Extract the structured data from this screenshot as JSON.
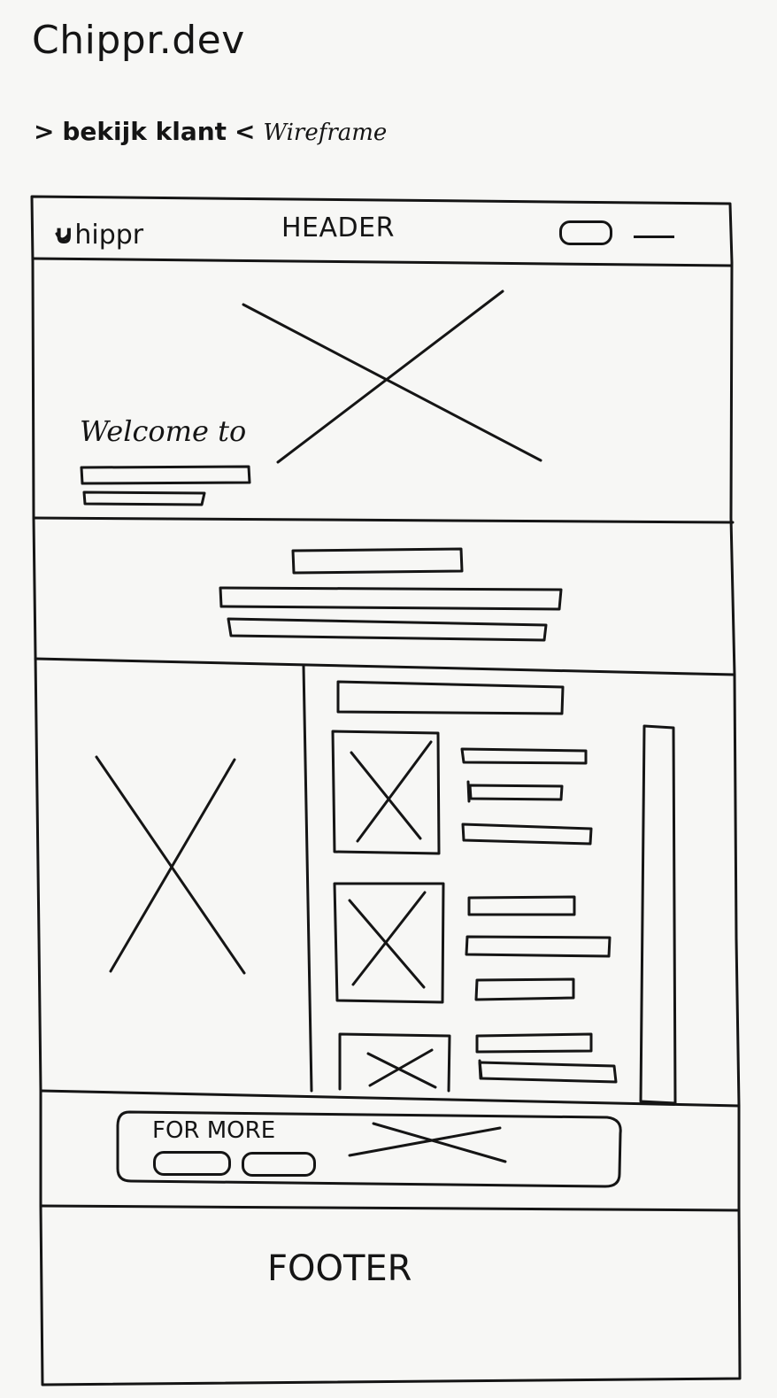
{
  "title": "Chippr.dev",
  "subtitle": {
    "arrow_left": ">",
    "link": "bekijk klant",
    "arrow_right": "<",
    "note": "Wireframe"
  },
  "header": {
    "logo_mark": "∪",
    "logo_text": "hippr",
    "label": "HEADER"
  },
  "hero": {
    "welcome": "Welcome to"
  },
  "cta": {
    "label": "FOR MORE"
  },
  "footer": {
    "label": "FOOTER"
  }
}
